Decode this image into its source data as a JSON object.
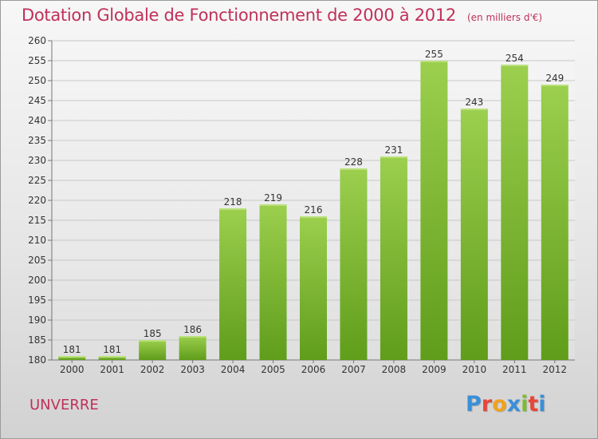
{
  "title": {
    "main": "Dotation Globale de Fonctionnement de 2000 à 2012",
    "unit": "(en milliers d'€)"
  },
  "commune": "UNVERRE",
  "logo": {
    "text": "Proxiti",
    "letters": [
      {
        "ch": "P",
        "color": "#3a8fd8"
      },
      {
        "ch": "r",
        "color": "#e8463a"
      },
      {
        "ch": "o",
        "color": "#f0a21e"
      },
      {
        "ch": "x",
        "color": "#3a8fd8"
      },
      {
        "ch": "i",
        "color": "#7bbd2e"
      },
      {
        "ch": "t",
        "color": "#e8463a"
      },
      {
        "ch": "i",
        "color": "#3a8fd8"
      }
    ]
  },
  "colors": {
    "title": "#c0305a",
    "bar_top": "#9ccf4e",
    "bar_bottom": "#5f9d1a",
    "grid": "#c8c8c8"
  },
  "chart_data": {
    "type": "bar",
    "categories": [
      "2000",
      "2001",
      "2002",
      "2003",
      "2004",
      "2005",
      "2006",
      "2007",
      "2008",
      "2009",
      "2010",
      "2011",
      "2012"
    ],
    "values": [
      181,
      181,
      185,
      186,
      218,
      219,
      216,
      228,
      231,
      255,
      243,
      254,
      249
    ],
    "data_labels": [
      "181",
      "181",
      "185",
      "186",
      "218",
      "219",
      "216",
      "228",
      "231",
      "255",
      "243",
      "254",
      "249"
    ],
    "yticks": [
      "180",
      "185",
      "190",
      "195",
      "200",
      "205",
      "210",
      "215",
      "220",
      "225",
      "230",
      "235",
      "240",
      "245",
      "250",
      "255",
      "260"
    ],
    "ylim": [
      180,
      260
    ],
    "ytick_step": 5,
    "grid": true,
    "legend": "none"
  }
}
